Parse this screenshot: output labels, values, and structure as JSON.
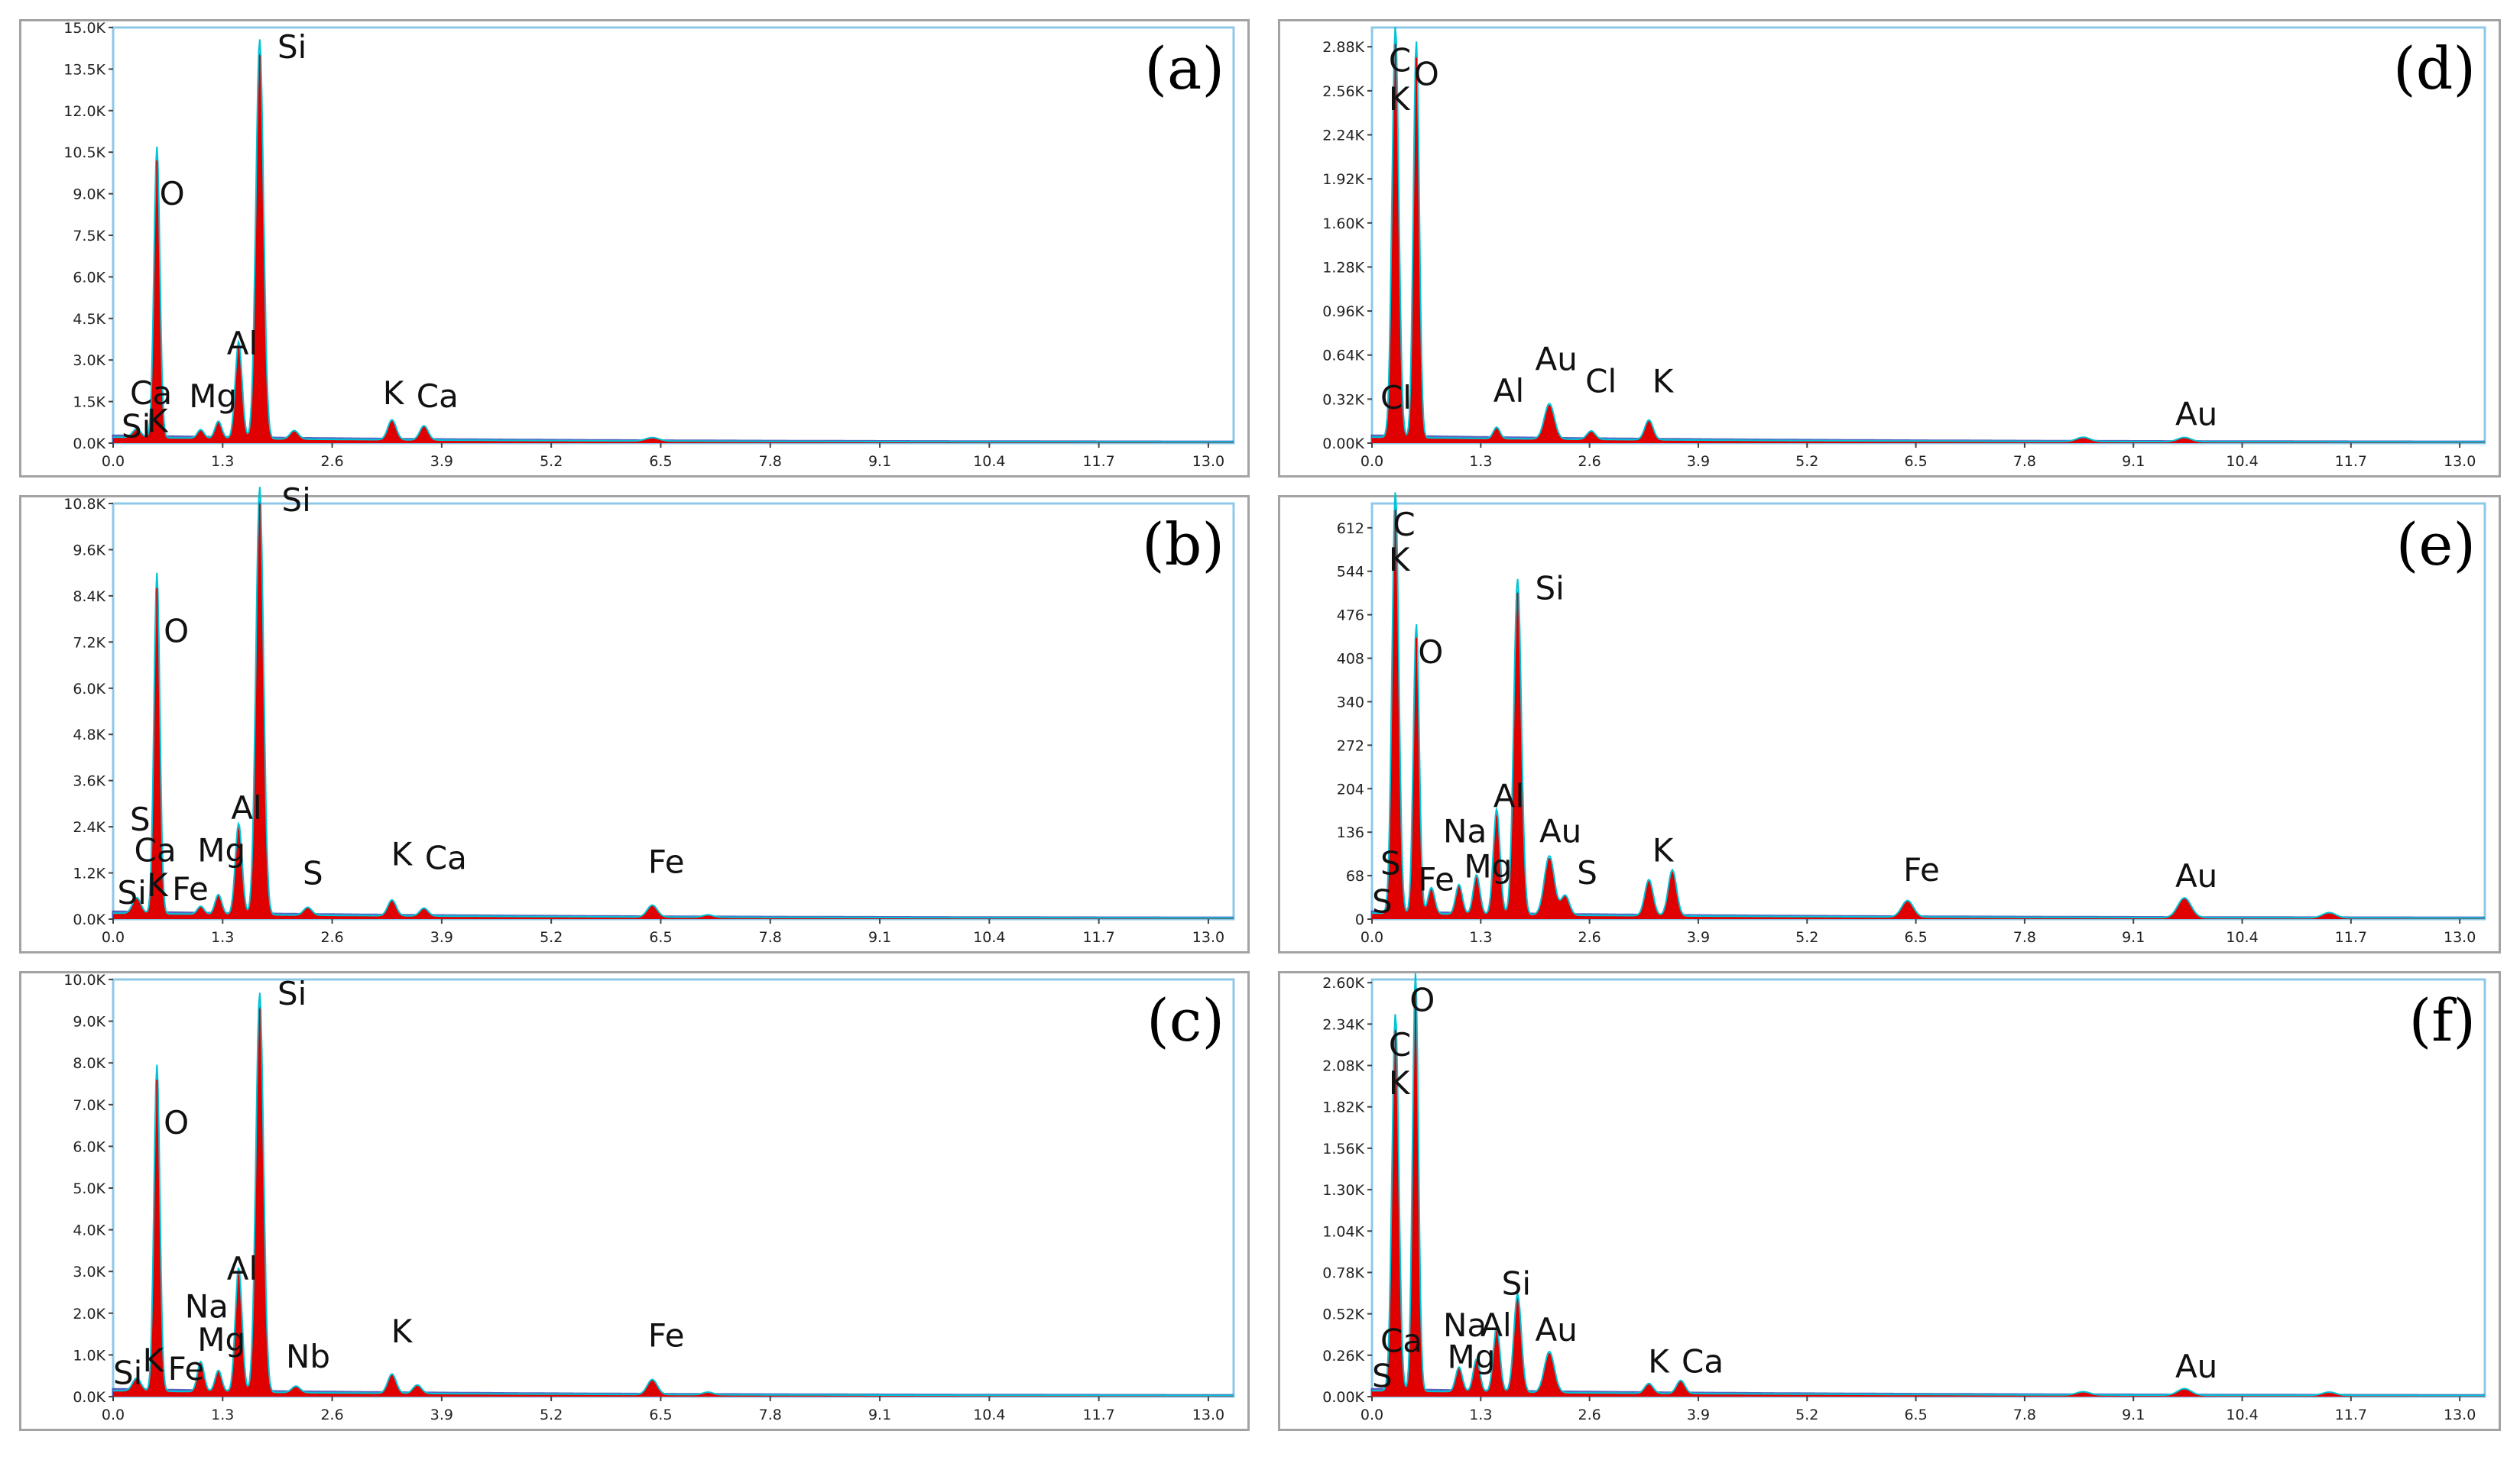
{
  "colors": {
    "peak": "#e10000",
    "trace": "#00c4d6",
    "background": "#2a3fb0",
    "frame": "#8ec8e8"
  },
  "chart_data": [
    {
      "type": "area",
      "panel": "(a)",
      "xlim": [
        0,
        13.3
      ],
      "ylim": [
        0,
        15.0
      ],
      "x_ticks": [
        "0.0",
        "1.3",
        "2.6",
        "3.9",
        "5.2",
        "6.5",
        "7.8",
        "9.1",
        "10.4",
        "11.7",
        "13.0"
      ],
      "y_ticks": [
        "0.0K",
        "1.5K",
        "3.0K",
        "4.5K",
        "6.0K",
        "7.5K",
        "9.0K",
        "10.5K",
        "12.0K",
        "13.5K",
        "15.0K"
      ],
      "peaks": [
        {
          "x": 0.28,
          "y": 0.3,
          "w": 0.05
        },
        {
          "x": 0.52,
          "y": 10.2,
          "w": 0.035
        },
        {
          "x": 1.04,
          "y": 0.3,
          "w": 0.04
        },
        {
          "x": 1.25,
          "y": 0.6,
          "w": 0.04
        },
        {
          "x": 1.49,
          "y": 3.4,
          "w": 0.04
        },
        {
          "x": 1.74,
          "y": 14.0,
          "w": 0.045
        },
        {
          "x": 2.15,
          "y": 0.3,
          "w": 0.05
        },
        {
          "x": 3.31,
          "y": 0.7,
          "w": 0.05
        },
        {
          "x": 3.69,
          "y": 0.5,
          "w": 0.05
        },
        {
          "x": 6.4,
          "y": 0.12,
          "w": 0.08
        }
      ],
      "labels": [
        {
          "text": "Si",
          "x": 0.1,
          "y": 0.2
        },
        {
          "text": "K",
          "x": 0.4,
          "y": 0.4
        },
        {
          "text": "Ca",
          "x": 0.2,
          "y": 1.4
        },
        {
          "text": "O",
          "x": 0.55,
          "y": 8.6
        },
        {
          "text": "Mg",
          "x": 0.9,
          "y": 1.3
        },
        {
          "text": "Al",
          "x": 1.35,
          "y": 3.2
        },
        {
          "text": "Si",
          "x": 1.95,
          "y": 13.9
        },
        {
          "text": "K",
          "x": 3.2,
          "y": 1.4
        },
        {
          "text": "Ca",
          "x": 3.6,
          "y": 1.3
        }
      ]
    },
    {
      "type": "area",
      "panel": "(b)",
      "xlim": [
        0,
        13.3
      ],
      "ylim": [
        0,
        10.8
      ],
      "x_ticks": [
        "0.0",
        "1.3",
        "2.6",
        "3.9",
        "5.2",
        "6.5",
        "7.8",
        "9.1",
        "10.4",
        "11.7",
        "13.0"
      ],
      "y_ticks": [
        "0.0K",
        "1.2K",
        "2.4K",
        "3.6K",
        "4.8K",
        "6.0K",
        "7.2K",
        "8.4K",
        "9.6K",
        "10.8K"
      ],
      "peaks": [
        {
          "x": 0.28,
          "y": 0.4,
          "w": 0.05
        },
        {
          "x": 0.52,
          "y": 8.6,
          "w": 0.035
        },
        {
          "x": 1.04,
          "y": 0.2,
          "w": 0.04
        },
        {
          "x": 1.25,
          "y": 0.5,
          "w": 0.04
        },
        {
          "x": 1.49,
          "y": 2.3,
          "w": 0.04
        },
        {
          "x": 1.74,
          "y": 10.8,
          "w": 0.045
        },
        {
          "x": 2.31,
          "y": 0.2,
          "w": 0.05
        },
        {
          "x": 3.31,
          "y": 0.4,
          "w": 0.05
        },
        {
          "x": 3.69,
          "y": 0.2,
          "w": 0.05
        },
        {
          "x": 6.4,
          "y": 0.3,
          "w": 0.06
        },
        {
          "x": 7.06,
          "y": 0.06,
          "w": 0.06
        }
      ],
      "labels": [
        {
          "text": "Si",
          "x": 0.05,
          "y": 0.4
        },
        {
          "text": "K",
          "x": 0.4,
          "y": 0.6
        },
        {
          "text": "Ca",
          "x": 0.25,
          "y": 1.5
        },
        {
          "text": "S",
          "x": 0.2,
          "y": 2.3
        },
        {
          "text": "O",
          "x": 0.6,
          "y": 7.2
        },
        {
          "text": "Fe",
          "x": 0.7,
          "y": 0.5
        },
        {
          "text": "Mg",
          "x": 1.0,
          "y": 1.5
        },
        {
          "text": "Al",
          "x": 1.4,
          "y": 2.6
        },
        {
          "text": "Si",
          "x": 2.0,
          "y": 10.6
        },
        {
          "text": "S",
          "x": 2.25,
          "y": 0.9
        },
        {
          "text": "K",
          "x": 3.3,
          "y": 1.4
        },
        {
          "text": "Ca",
          "x": 3.7,
          "y": 1.3
        },
        {
          "text": "Fe",
          "x": 6.35,
          "y": 1.2
        }
      ]
    },
    {
      "type": "area",
      "panel": "(c)",
      "xlim": [
        0,
        13.3
      ],
      "ylim": [
        0,
        10.0
      ],
      "x_ticks": [
        "0.0",
        "1.3",
        "2.6",
        "3.9",
        "5.2",
        "6.5",
        "7.8",
        "9.1",
        "10.4",
        "11.7",
        "13.0"
      ],
      "y_ticks": [
        "0.0K",
        "1.0K",
        "2.0K",
        "3.0K",
        "4.0K",
        "5.0K",
        "6.0K",
        "7.0K",
        "8.0K",
        "9.0K",
        "10.0K"
      ],
      "peaks": [
        {
          "x": 0.28,
          "y": 0.3,
          "w": 0.05
        },
        {
          "x": 0.52,
          "y": 7.6,
          "w": 0.035
        },
        {
          "x": 1.04,
          "y": 0.7,
          "w": 0.04
        },
        {
          "x": 1.25,
          "y": 0.5,
          "w": 0.04
        },
        {
          "x": 1.49,
          "y": 2.9,
          "w": 0.04
        },
        {
          "x": 1.74,
          "y": 9.3,
          "w": 0.045
        },
        {
          "x": 2.17,
          "y": 0.15,
          "w": 0.05
        },
        {
          "x": 3.31,
          "y": 0.45,
          "w": 0.05
        },
        {
          "x": 3.61,
          "y": 0.2,
          "w": 0.05
        },
        {
          "x": 6.4,
          "y": 0.35,
          "w": 0.06
        },
        {
          "x": 7.06,
          "y": 0.06,
          "w": 0.06
        }
      ],
      "labels": [
        {
          "text": "Si",
          "x": 0.0,
          "y": 0.3
        },
        {
          "text": "K",
          "x": 0.35,
          "y": 0.6
        },
        {
          "text": "O",
          "x": 0.6,
          "y": 6.3
        },
        {
          "text": "Fe",
          "x": 0.65,
          "y": 0.4
        },
        {
          "text": "Mg",
          "x": 1.0,
          "y": 1.1
        },
        {
          "text": "Na",
          "x": 0.85,
          "y": 1.9
        },
        {
          "text": "Al",
          "x": 1.35,
          "y": 2.8
        },
        {
          "text": "Si",
          "x": 1.95,
          "y": 9.4
        },
        {
          "text": "Nb",
          "x": 2.05,
          "y": 0.7
        },
        {
          "text": "K",
          "x": 3.3,
          "y": 1.3
        },
        {
          "text": "Fe",
          "x": 6.35,
          "y": 1.2
        }
      ]
    },
    {
      "type": "area",
      "panel": "(d)",
      "xlim": [
        0,
        13.3
      ],
      "ylim": [
        0,
        3.02
      ],
      "x_ticks": [
        "0.0",
        "1.3",
        "2.6",
        "3.9",
        "5.2",
        "6.5",
        "7.8",
        "9.1",
        "10.4",
        "11.7",
        "13.0"
      ],
      "y_ticks": [
        "0.00K",
        "0.32K",
        "0.64K",
        "0.96K",
        "1.28K",
        "1.60K",
        "1.92K",
        "2.24K",
        "2.56K",
        "2.88K"
      ],
      "peaks": [
        {
          "x": 0.28,
          "y": 2.9,
          "w": 0.04
        },
        {
          "x": 0.53,
          "y": 2.8,
          "w": 0.035
        },
        {
          "x": 1.49,
          "y": 0.08,
          "w": 0.04
        },
        {
          "x": 2.12,
          "y": 0.25,
          "w": 0.06
        },
        {
          "x": 2.62,
          "y": 0.06,
          "w": 0.05
        },
        {
          "x": 3.31,
          "y": 0.14,
          "w": 0.05
        },
        {
          "x": 8.5,
          "y": 0.03,
          "w": 0.08
        },
        {
          "x": 9.71,
          "y": 0.03,
          "w": 0.08
        }
      ],
      "labels": [
        {
          "text": "Cl",
          "x": 0.1,
          "y": 0.25
        },
        {
          "text": "K",
          "x": 0.2,
          "y": 2.42
        },
        {
          "text": "C",
          "x": 0.2,
          "y": 2.7
        },
        {
          "text": "O",
          "x": 0.5,
          "y": 2.6
        },
        {
          "text": "Al",
          "x": 1.45,
          "y": 0.3
        },
        {
          "text": "Au",
          "x": 1.95,
          "y": 0.53
        },
        {
          "text": "Cl",
          "x": 2.55,
          "y": 0.37
        },
        {
          "text": "K",
          "x": 3.35,
          "y": 0.37
        },
        {
          "text": "Au",
          "x": 9.6,
          "y": 0.13
        }
      ]
    },
    {
      "type": "area",
      "panel": "(e)",
      "xlim": [
        0,
        13.3
      ],
      "ylim": [
        0,
        650
      ],
      "x_ticks": [
        "0.0",
        "1.3",
        "2.6",
        "3.9",
        "5.2",
        "6.5",
        "7.8",
        "9.1",
        "10.4",
        "11.7",
        "13.0"
      ],
      "y_ticks": [
        "0",
        "68",
        "136",
        "204",
        "272",
        "340",
        "408",
        "476",
        "544",
        "612"
      ],
      "peaks": [
        {
          "x": 0.28,
          "y": 640,
          "w": 0.04
        },
        {
          "x": 0.53,
          "y": 440,
          "w": 0.035
        },
        {
          "x": 0.71,
          "y": 40,
          "w": 0.04
        },
        {
          "x": 1.04,
          "y": 45,
          "w": 0.04
        },
        {
          "x": 1.25,
          "y": 60,
          "w": 0.04
        },
        {
          "x": 1.49,
          "y": 160,
          "w": 0.04
        },
        {
          "x": 1.74,
          "y": 510,
          "w": 0.045
        },
        {
          "x": 2.12,
          "y": 90,
          "w": 0.06
        },
        {
          "x": 2.31,
          "y": 30,
          "w": 0.05
        },
        {
          "x": 3.31,
          "y": 55,
          "w": 0.05
        },
        {
          "x": 3.59,
          "y": 70,
          "w": 0.05
        },
        {
          "x": 6.4,
          "y": 25,
          "w": 0.07
        },
        {
          "x": 9.71,
          "y": 30,
          "w": 0.08
        },
        {
          "x": 11.44,
          "y": 8,
          "w": 0.08
        }
      ],
      "labels": [
        {
          "text": "S",
          "x": 0.0,
          "y": 10
        },
        {
          "text": "S",
          "x": 0.1,
          "y": 70
        },
        {
          "text": "K",
          "x": 0.2,
          "y": 545
        },
        {
          "text": "C",
          "x": 0.25,
          "y": 600
        },
        {
          "text": "O",
          "x": 0.55,
          "y": 400
        },
        {
          "text": "Fe",
          "x": 0.55,
          "y": 45
        },
        {
          "text": "Na",
          "x": 0.85,
          "y": 120
        },
        {
          "text": "Mg",
          "x": 1.1,
          "y": 65
        },
        {
          "text": "Al",
          "x": 1.45,
          "y": 175
        },
        {
          "text": "Si",
          "x": 1.95,
          "y": 500
        },
        {
          "text": "Au",
          "x": 2.0,
          "y": 120
        },
        {
          "text": "S",
          "x": 2.45,
          "y": 55
        },
        {
          "text": "K",
          "x": 3.35,
          "y": 90
        },
        {
          "text": "Fe",
          "x": 6.35,
          "y": 60
        },
        {
          "text": "Au",
          "x": 9.6,
          "y": 50
        }
      ]
    },
    {
      "type": "area",
      "panel": "(f)",
      "xlim": [
        0,
        13.3
      ],
      "ylim": [
        0,
        2.62
      ],
      "x_ticks": [
        "0.0",
        "1.3",
        "2.6",
        "3.9",
        "5.2",
        "6.5",
        "7.8",
        "9.1",
        "10.4",
        "11.7",
        "13.0"
      ],
      "y_ticks": [
        "0.00K",
        "0.26K",
        "0.52K",
        "0.78K",
        "1.04K",
        "1.30K",
        "1.56K",
        "1.82K",
        "2.08K",
        "2.34K",
        "2.60K"
      ],
      "peaks": [
        {
          "x": 0.28,
          "y": 2.3,
          "w": 0.04
        },
        {
          "x": 0.52,
          "y": 2.55,
          "w": 0.035
        },
        {
          "x": 1.04,
          "y": 0.15,
          "w": 0.04
        },
        {
          "x": 1.25,
          "y": 0.2,
          "w": 0.04
        },
        {
          "x": 1.49,
          "y": 0.4,
          "w": 0.04
        },
        {
          "x": 1.74,
          "y": 0.6,
          "w": 0.045
        },
        {
          "x": 2.12,
          "y": 0.25,
          "w": 0.06
        },
        {
          "x": 3.31,
          "y": 0.06,
          "w": 0.05
        },
        {
          "x": 3.69,
          "y": 0.08,
          "w": 0.05
        },
        {
          "x": 8.5,
          "y": 0.02,
          "w": 0.08
        },
        {
          "x": 9.71,
          "y": 0.04,
          "w": 0.08
        },
        {
          "x": 11.44,
          "y": 0.02,
          "w": 0.08
        }
      ],
      "labels": [
        {
          "text": "S",
          "x": 0.0,
          "y": 0.06
        },
        {
          "text": "Ca",
          "x": 0.1,
          "y": 0.28
        },
        {
          "text": "K",
          "x": 0.2,
          "y": 1.9
        },
        {
          "text": "C",
          "x": 0.2,
          "y": 2.14
        },
        {
          "text": "O",
          "x": 0.45,
          "y": 2.42
        },
        {
          "text": "Mg",
          "x": 0.9,
          "y": 0.18
        },
        {
          "text": "Na",
          "x": 0.85,
          "y": 0.38
        },
        {
          "text": "Al",
          "x": 1.3,
          "y": 0.38
        },
        {
          "text": "Si",
          "x": 1.55,
          "y": 0.64
        },
        {
          "text": "Au",
          "x": 1.95,
          "y": 0.35
        },
        {
          "text": "K",
          "x": 3.3,
          "y": 0.15
        },
        {
          "text": "Ca",
          "x": 3.7,
          "y": 0.15
        },
        {
          "text": "Au",
          "x": 9.6,
          "y": 0.12
        }
      ]
    }
  ]
}
